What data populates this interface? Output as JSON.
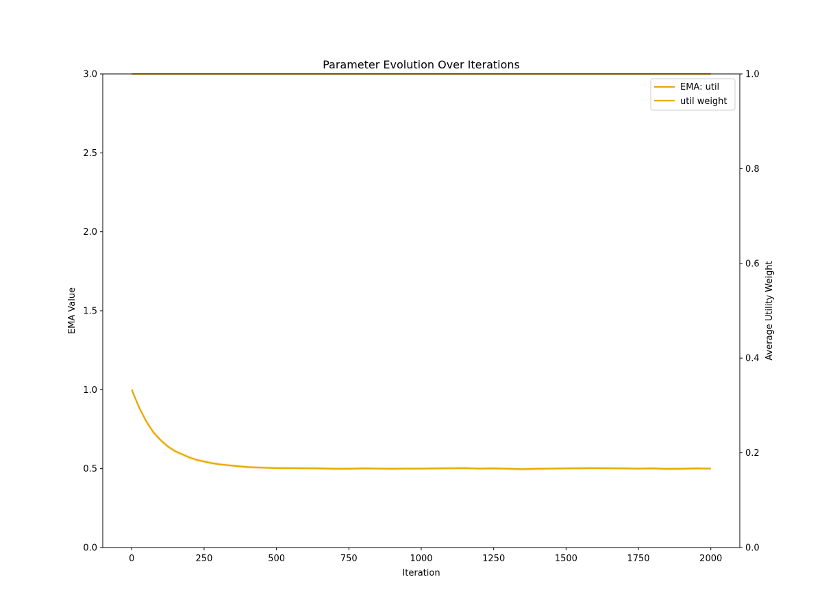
{
  "chart_data": {
    "type": "line",
    "title": "Parameter Evolution Over Iterations",
    "xlabel": "Iteration",
    "ylabel": "EMA Value",
    "y2label": "Average Utility Weight",
    "xlim": [
      -100,
      2100
    ],
    "ylim": [
      0,
      3
    ],
    "y2lim": [
      0,
      1
    ],
    "x_ticks": [
      0,
      250,
      500,
      750,
      1000,
      1250,
      1500,
      1750,
      2000
    ],
    "y_ticks": [
      0,
      0.5,
      1,
      1.5,
      2,
      2.5,
      3
    ],
    "y2_ticks": [
      0,
      0.2,
      0.4,
      0.6,
      0.8,
      1
    ],
    "grid": false,
    "legend_position": "top-right",
    "color": "#e6aa00",
    "series": [
      {
        "name": "EMA: util",
        "axis": "left",
        "x": [
          0,
          25,
          50,
          75,
          100,
          125,
          150,
          175,
          200,
          225,
          250,
          275,
          300,
          350,
          400,
          450,
          500,
          550,
          600,
          650,
          700,
          750,
          800,
          850,
          900,
          950,
          1000,
          1050,
          1100,
          1150,
          1200,
          1250,
          1300,
          1350,
          1400,
          1450,
          1500,
          1550,
          1600,
          1650,
          1700,
          1750,
          1800,
          1850,
          1900,
          1950,
          2000
        ],
        "y": [
          1.0,
          0.89,
          0.8,
          0.73,
          0.68,
          0.64,
          0.61,
          0.59,
          0.57,
          0.555,
          0.545,
          0.535,
          0.528,
          0.518,
          0.51,
          0.506,
          0.503,
          0.503,
          0.502,
          0.501,
          0.499,
          0.499,
          0.501,
          0.5,
          0.499,
          0.5,
          0.5,
          0.501,
          0.502,
          0.503,
          0.5,
          0.501,
          0.499,
          0.497,
          0.499,
          0.5,
          0.501,
          0.502,
          0.503,
          0.502,
          0.501,
          0.5,
          0.501,
          0.498,
          0.499,
          0.501,
          0.5
        ]
      },
      {
        "name": "util weight",
        "axis": "right",
        "x": [
          0,
          2000
        ],
        "y": [
          1.0,
          1.0
        ]
      }
    ]
  }
}
